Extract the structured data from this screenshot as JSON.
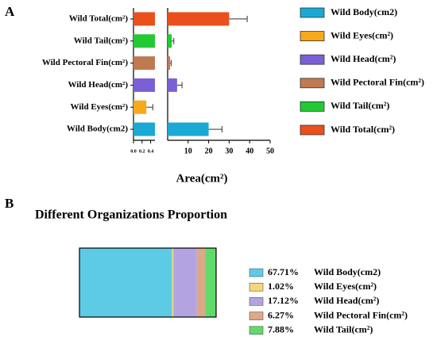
{
  "chart_data": [
    {
      "type": "hbar_broken",
      "label": "A",
      "categories": [
        "Wild Body(cm2)",
        "Wild Eyes(cm²)",
        "Wild Head(cm²)",
        "Wild Pectoral Fin(cm²)",
        "Wild Tail(cm²)",
        "Wild Total(cm²)"
      ],
      "values": [
        20,
        0.3,
        4.6,
        1.2,
        2,
        30
      ],
      "errors": [
        6.5,
        0.15,
        2.4,
        0.5,
        1,
        8.8
      ],
      "colors": [
        "#1aa9d4",
        "#f7a81b",
        "#7b5fd4",
        "#c07a52",
        "#22c932",
        "#ea4f1c"
      ],
      "xlabel": "Area(cm²)",
      "xsegments": [
        {
          "xlim": [
            0,
            0.5
          ],
          "xticks": [
            {
              "value": 0,
              "label": "0.0"
            },
            {
              "value": 0.2,
              "label": "0.2"
            },
            {
              "value": 0.4,
              "label": "0.4"
            }
          ]
        },
        {
          "xlim": [
            0,
            50
          ],
          "xticks": [
            10,
            20,
            30,
            40,
            50
          ]
        }
      ],
      "legend": "right"
    },
    {
      "type": "stacked_hbar",
      "label": "B",
      "title": "Different Organizations Proportion",
      "xlim": [
        0,
        100
      ],
      "series": [
        {
          "name": "Wild Body(cm2)",
          "color": "#5ecbe6",
          "values": [
            67.71
          ],
          "value_labels": [
            "67.71%"
          ]
        },
        {
          "name": "Wild Eyes(cm²)",
          "color": "#f5d77a",
          "values": [
            1.02
          ],
          "value_labels": [
            "1.02%"
          ]
        },
        {
          "name": "Wild Head(cm²)",
          "color": "#b3a3e0",
          "values": [
            17.12
          ],
          "value_labels": [
            "17.12%"
          ]
        },
        {
          "name": "Wild Pectoral Fin(cm²)",
          "color": "#dba88a",
          "values": [
            6.27
          ],
          "value_labels": [
            "6.27%"
          ]
        },
        {
          "name": "Wild Tail(cm²)",
          "color": "#5fdb6a",
          "values": [
            7.88
          ],
          "value_labels": [
            "7.88%"
          ]
        }
      ],
      "legend": "right"
    }
  ]
}
